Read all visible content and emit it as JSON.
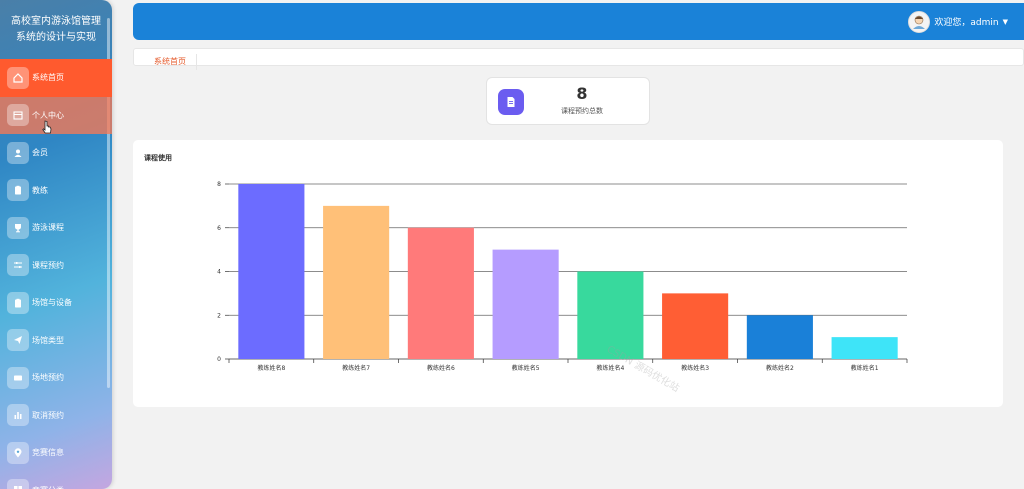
{
  "app": {
    "title_line1": "高校室内游泳馆管理",
    "title_line2": "系统的设计与实现"
  },
  "sidebar": {
    "items": [
      {
        "label": "系统首页",
        "icon": "home-icon",
        "state": "active"
      },
      {
        "label": "个人中心",
        "icon": "calendar-icon",
        "state": "hover"
      },
      {
        "label": "会员",
        "icon": "user-icon"
      },
      {
        "label": "教练",
        "icon": "clipboard-icon"
      },
      {
        "label": "游泳课程",
        "icon": "trophy-icon"
      },
      {
        "label": "课程预约",
        "icon": "sliders-icon"
      },
      {
        "label": "场馆与设备",
        "icon": "clipboard-icon"
      },
      {
        "label": "场馆类型",
        "icon": "send-icon"
      },
      {
        "label": "场地预约",
        "icon": "ticket-icon"
      },
      {
        "label": "取消预约",
        "icon": "bar-chart-icon"
      },
      {
        "label": "竞赛信息",
        "icon": "location-icon"
      },
      {
        "label": "竞赛分类",
        "icon": "grid-icon"
      }
    ]
  },
  "header": {
    "welcome": "欢迎您，admin",
    "caret": "▼"
  },
  "breadcrumb": {
    "home": "系统首页"
  },
  "stat": {
    "value": "8",
    "label": "课程预约总数"
  },
  "watermark": "CSDN 源码优化站",
  "colors": {
    "header": "#1a82d8",
    "active_menu": "#ff5a2e",
    "accent": "#6b5cf0"
  },
  "chart_data": {
    "type": "bar",
    "title": "课程使用",
    "categories": [
      "教练姓名8",
      "教练姓名7",
      "教练姓名6",
      "教练姓名5",
      "教练姓名4",
      "教练姓名3",
      "教练姓名2",
      "教练姓名1"
    ],
    "values": [
      8,
      7,
      6,
      5,
      4,
      3,
      2,
      1
    ],
    "colors": [
      "#6c6cff",
      "#ffc078",
      "#ff7a7a",
      "#b59cff",
      "#38d99d",
      "#ff5e34",
      "#1a80d8",
      "#3ee4f8"
    ],
    "ylim": [
      0,
      8
    ],
    "yticks": [
      0,
      2,
      4,
      6,
      8
    ],
    "grid": true,
    "legend": "none"
  }
}
